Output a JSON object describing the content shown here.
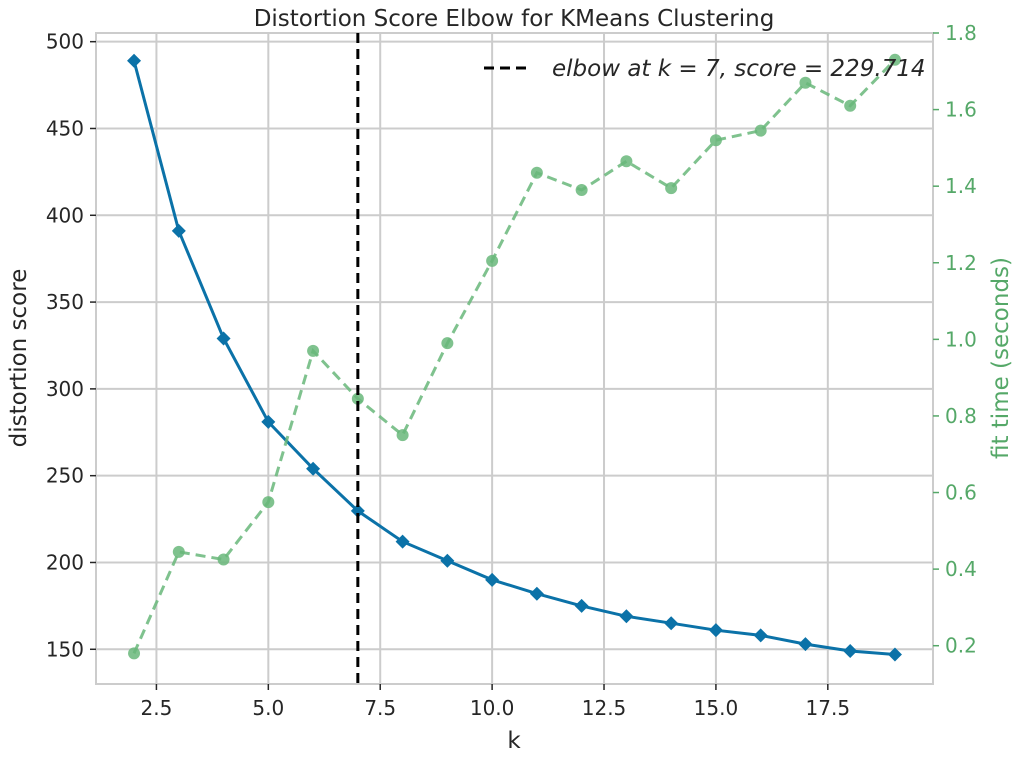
{
  "chart_data": {
    "type": "line",
    "title": "Distortion Score Elbow for KMeans Clustering",
    "xlabel": "k",
    "ylabel": "distortion score",
    "y2label": "fit time (seconds)",
    "xlim": [
      1.15,
      19.85
    ],
    "ylim": [
      130,
      505
    ],
    "y2lim": [
      0.1,
      1.8
    ],
    "x_ticks": [
      2.5,
      5.0,
      7.5,
      10.0,
      12.5,
      15.0,
      17.5
    ],
    "x_tick_labels": [
      "2.5",
      "5.0",
      "7.5",
      "10.0",
      "12.5",
      "15.0",
      "17.5"
    ],
    "y_ticks": [
      150,
      200,
      250,
      300,
      350,
      400,
      450,
      500
    ],
    "y_tick_labels": [
      "150",
      "200",
      "250",
      "300",
      "350",
      "400",
      "450",
      "500"
    ],
    "y2_ticks": [
      0.2,
      0.4,
      0.6,
      0.8,
      1.0,
      1.2,
      1.4,
      1.6,
      1.8
    ],
    "y2_tick_labels": [
      "0.2",
      "0.4",
      "0.6",
      "0.8",
      "1.0",
      "1.2",
      "1.4",
      "1.6",
      "1.8"
    ],
    "grid": true,
    "legend_position": "top-right",
    "x": [
      2,
      3,
      4,
      5,
      6,
      7,
      8,
      9,
      10,
      11,
      12,
      13,
      14,
      15,
      16,
      17,
      18,
      19
    ],
    "series": [
      {
        "name": "distortion score",
        "axis": "left",
        "marker": "diamond",
        "color": "#0b72a8",
        "values": [
          489,
          391,
          329,
          281,
          254,
          229.714,
          212,
          201,
          190,
          182,
          175,
          169,
          165,
          161,
          158,
          153,
          149,
          147
        ]
      },
      {
        "name": "fit time (seconds)",
        "axis": "right",
        "marker": "circle",
        "color": "#69b77a",
        "dashed": true,
        "values": [
          0.18,
          0.445,
          0.425,
          0.575,
          0.97,
          0.845,
          0.75,
          0.99,
          1.205,
          1.435,
          1.39,
          1.465,
          1.395,
          1.52,
          1.545,
          1.67,
          1.61,
          1.73
        ]
      }
    ],
    "elbow": {
      "k": 7,
      "legend_label": "elbow at k = 7, score = 229.714",
      "color": "#000000"
    },
    "colors": {
      "left_axis": "#262626",
      "right_axis": "#55a868",
      "grid": "#cccccc",
      "frame": "#cccccc"
    }
  }
}
